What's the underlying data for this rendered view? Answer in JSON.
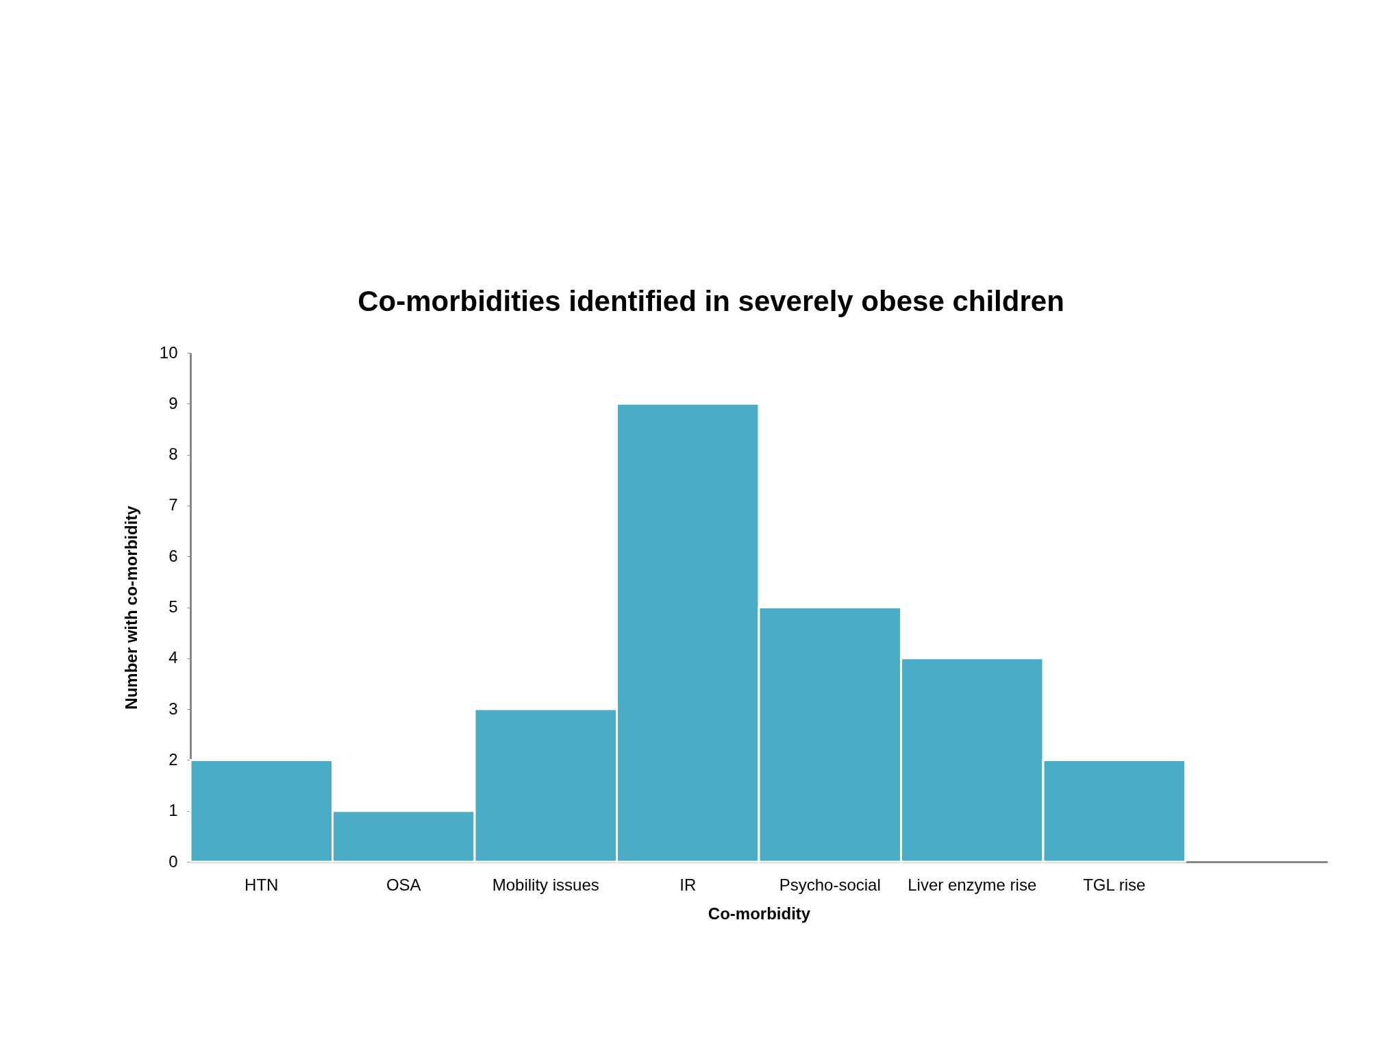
{
  "chart_data": {
    "type": "bar",
    "title": "Co-morbidities identified in severely obese children",
    "xlabel": "Co-morbidity",
    "ylabel": "Number with co-morbidity",
    "categories": [
      "HTN",
      "OSA",
      "Mobility issues",
      "IR",
      "Psycho-social",
      "Liver enzyme rise",
      "TGL rise",
      null
    ],
    "values": [
      2,
      1,
      3,
      9,
      5,
      4,
      2,
      null
    ],
    "color": "#4bacc6",
    "ylim": [
      0,
      10
    ],
    "yticks": [
      0,
      1,
      2,
      3,
      4,
      5,
      6,
      7,
      8,
      9,
      10
    ],
    "grid": false
  }
}
